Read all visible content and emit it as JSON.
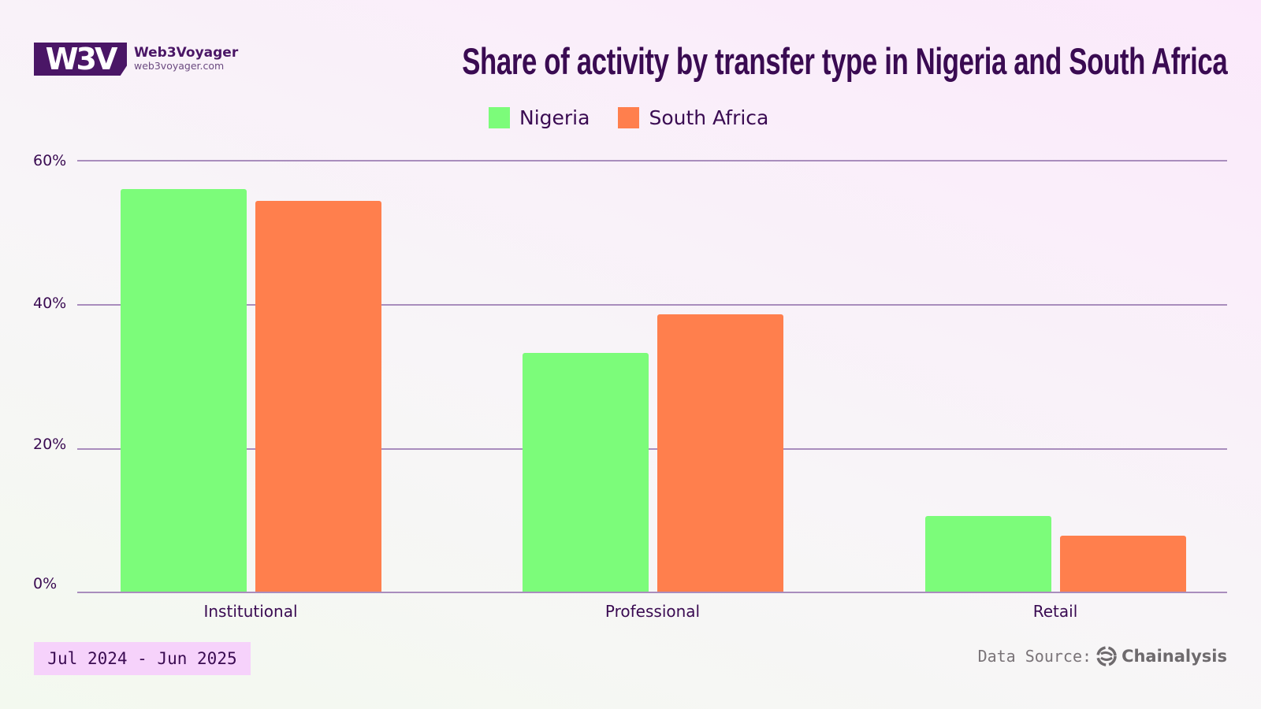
{
  "brand": {
    "mark": "W3V",
    "name": "Web3Voyager",
    "url": "web3voyager.com"
  },
  "header": {
    "title": "Share of activity by transfer type in Nigeria and South Africa"
  },
  "legend": [
    {
      "label": "Nigeria",
      "color": "#7cfc7a"
    },
    {
      "label": "South Africa",
      "color": "#ff7f4d"
    }
  ],
  "footer": {
    "date_range": "Jul 2024 - Jun 2025",
    "source_label": "Data Source:",
    "source_brand": "Chainalysis",
    "source_icon": "chainalysis-logo-icon"
  },
  "colors": {
    "nigeria": "#7cfc7a",
    "south_africa": "#ff7f4d",
    "title": "#3a0b52",
    "gridline": "#a98dbd",
    "date_box": "#f6d2fb"
  },
  "chart_data": {
    "type": "bar",
    "title": "Share of activity by transfer type in Nigeria and South Africa",
    "categories": [
      "Institutional",
      "Professional",
      "Retail"
    ],
    "series": [
      {
        "name": "Nigeria",
        "values": [
          56.0,
          33.2,
          10.5
        ],
        "color": "#7cfc7a"
      },
      {
        "name": "South Africa",
        "values": [
          54.3,
          38.5,
          7.8
        ],
        "color": "#ff7f4d"
      }
    ],
    "xlabel": "",
    "ylabel": "",
    "ylim": [
      0,
      60
    ],
    "yticks": [
      "0%",
      "20%",
      "40%",
      "60%"
    ],
    "grid": true,
    "legend_position": "top"
  }
}
